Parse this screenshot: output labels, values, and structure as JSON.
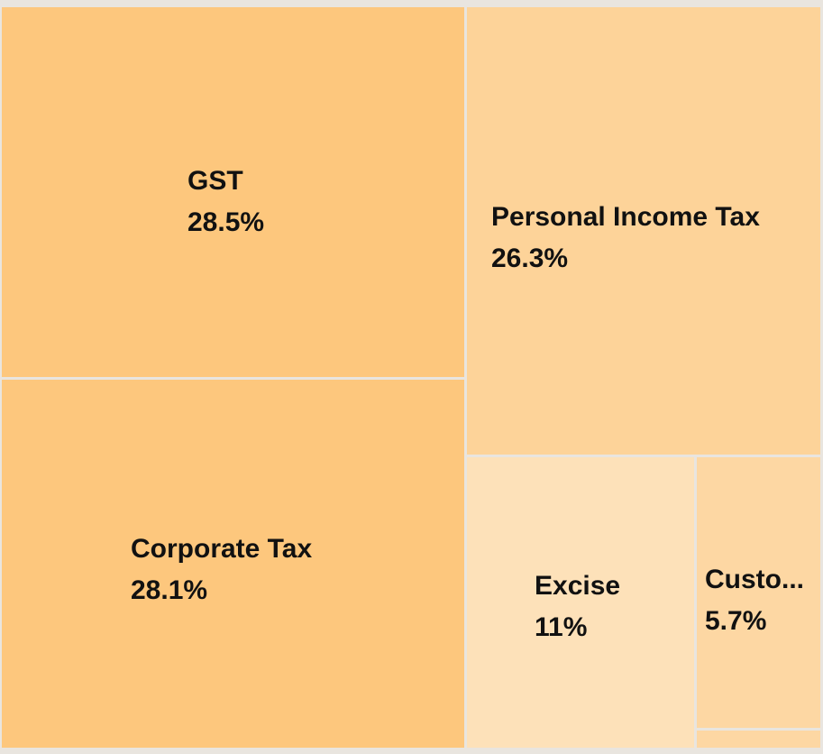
{
  "chart_data": {
    "type": "treemap",
    "title": "",
    "items": [
      {
        "name": "GST",
        "display_name": "GST",
        "value_label": "28.5%",
        "value": 28.5,
        "color": "#fdc77d"
      },
      {
        "name": "Corporate Tax",
        "display_name": "Corporate Tax",
        "value_label": "28.1%",
        "value": 28.1,
        "color": "#fdc77d"
      },
      {
        "name": "Personal Income Tax",
        "display_name": "Personal Income Tax",
        "value_label": "26.3%",
        "value": 26.3,
        "color": "#fdd399"
      },
      {
        "name": "Excise",
        "display_name": "Excise",
        "value_label": "11%",
        "value": 11.0,
        "color": "#fde1b9"
      },
      {
        "name": "Customs",
        "display_name": "Custo...",
        "value_label": "5.7%",
        "value": 5.7,
        "color": "#fdd7a3"
      },
      {
        "name": "",
        "display_name": "",
        "value_label": "",
        "value": 0.4,
        "color": "#fdd7a3"
      }
    ]
  }
}
